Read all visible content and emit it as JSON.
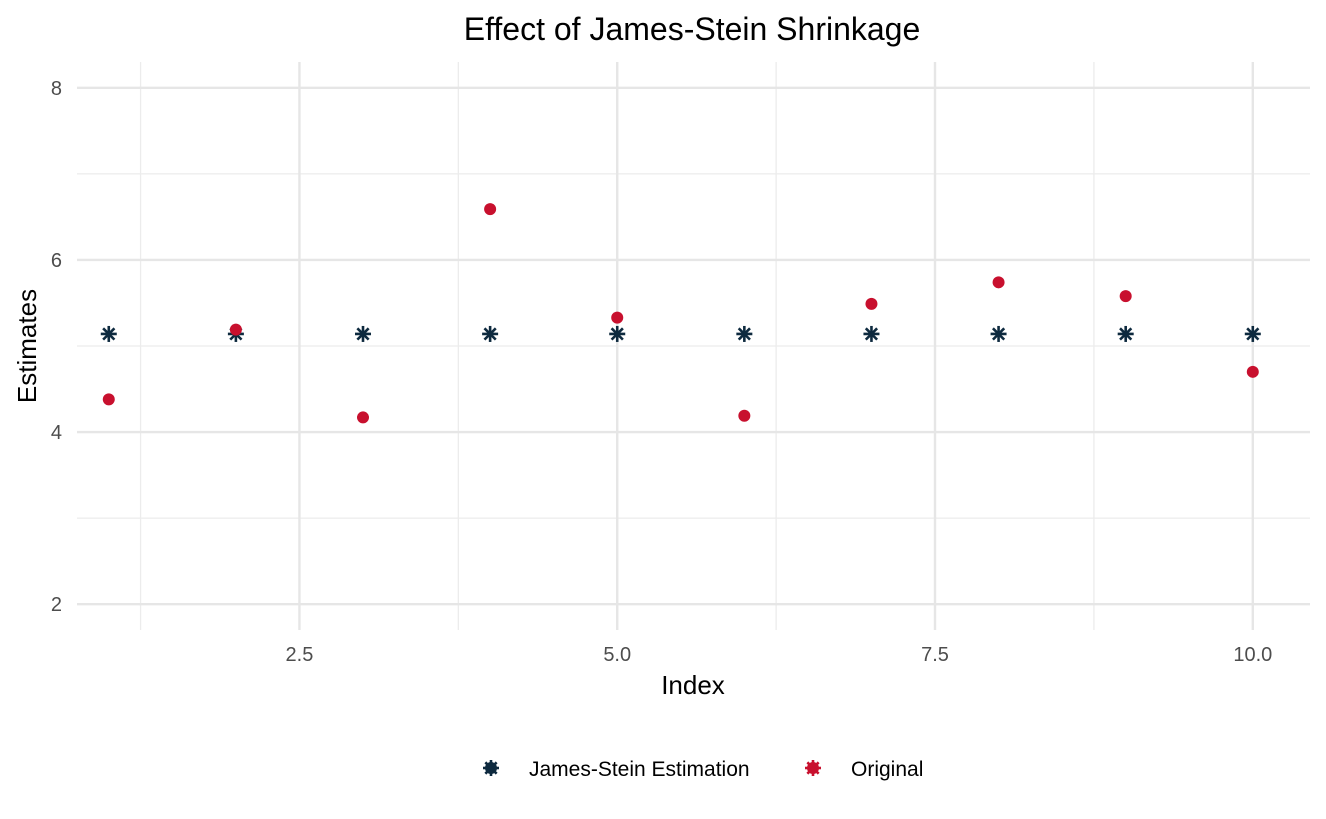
{
  "chart_data": {
    "type": "scatter",
    "title": "Effect of James-Stein Shrinkage",
    "xlabel": "Index",
    "ylabel": "Estimates",
    "xlim": [
      0.75,
      10.45
    ],
    "ylim": [
      1.7,
      8.3
    ],
    "x_ticks": [
      2.5,
      5.0,
      7.5,
      10.0
    ],
    "x_tick_labels": [
      "2.5",
      "5.0",
      "7.5",
      "10.0"
    ],
    "y_ticks": [
      2,
      4,
      6,
      8
    ],
    "y_tick_labels": [
      "2",
      "4",
      "6",
      "8"
    ],
    "grid": true,
    "legend_position": "bottom",
    "series": [
      {
        "name": "James-Stein Estimation",
        "color": "#0e2a3f",
        "marker": "asterisk",
        "x": [
          1,
          2,
          3,
          4,
          5,
          6,
          7,
          8,
          9,
          10
        ],
        "y": [
          5.14,
          5.14,
          5.14,
          5.14,
          5.14,
          5.14,
          5.14,
          5.14,
          5.14,
          5.14
        ]
      },
      {
        "name": "Original",
        "color": "#c8102e",
        "marker": "circle",
        "x": [
          1,
          2,
          3,
          4,
          5,
          6,
          7,
          8,
          9,
          10
        ],
        "y": [
          4.38,
          5.19,
          4.17,
          6.59,
          5.33,
          4.19,
          5.49,
          5.74,
          5.58,
          4.7
        ]
      }
    ]
  }
}
